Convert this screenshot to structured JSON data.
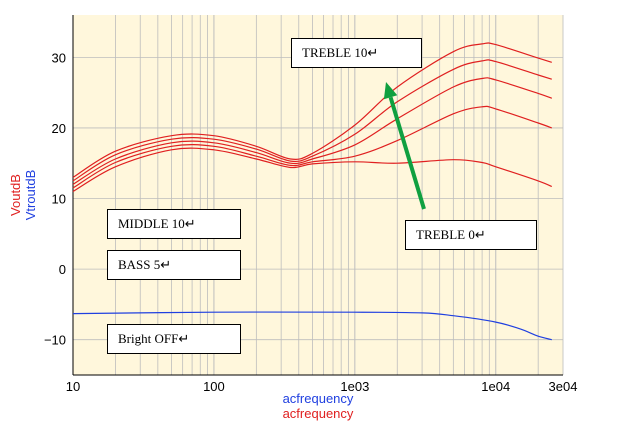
{
  "chart_data": {
    "type": "line",
    "title": "",
    "xlabel": [
      "acfrequency",
      "acfrequency"
    ],
    "ylabel": [
      "VoutdB",
      "VtroutdB"
    ],
    "xscale": "log",
    "xlim": [
      10,
      30000
    ],
    "ylim": [
      -15,
      36
    ],
    "x_ticks": [
      {
        "value": 10,
        "label": "10"
      },
      {
        "value": 100,
        "label": "100"
      },
      {
        "value": 1000,
        "label": "1e03"
      },
      {
        "value": 10000,
        "label": "1e04"
      },
      {
        "value": 30000,
        "label": "3e04"
      }
    ],
    "y_ticks": [
      {
        "value": 30,
        "label": "30"
      },
      {
        "value": 20,
        "label": "20"
      },
      {
        "value": 10,
        "label": "10"
      },
      {
        "value": 0,
        "label": "0"
      },
      {
        "value": -10,
        "label": "−10"
      }
    ],
    "grid": true,
    "colors": {
      "background": "#fff7dc",
      "grid": "#bdbdbd",
      "red": "#e02020",
      "blue": "#2040e0",
      "arrow": "#10a040"
    },
    "series": [
      {
        "name": "",
        "color": "#e02020",
        "x": [
          10,
          20,
          50,
          100,
          200,
          350,
          500,
          1000,
          2000,
          5000,
          8000,
          10000,
          20000,
          25000
        ],
        "y": [
          11.0,
          14.5,
          16.9,
          16.9,
          15.6,
          14.4,
          14.9,
          15.2,
          15.0,
          15.5,
          15.1,
          14.5,
          12.5,
          11.7
        ]
      },
      {
        "name": "",
        "color": "#e02020",
        "x": [
          10,
          20,
          50,
          100,
          200,
          350,
          500,
          1000,
          2000,
          5000,
          8000,
          10000,
          20000,
          25000
        ],
        "y": [
          11.5,
          15.1,
          17.4,
          17.4,
          16.0,
          14.7,
          15.2,
          16.0,
          18.2,
          22.0,
          23.0,
          22.7,
          20.7,
          20.0
        ]
      },
      {
        "name": "",
        "color": "#e02020",
        "x": [
          10,
          20,
          50,
          100,
          200,
          350,
          500,
          1000,
          2000,
          5000,
          8000,
          10000,
          20000,
          25000
        ],
        "y": [
          12.0,
          15.6,
          17.9,
          17.9,
          16.5,
          15.0,
          15.6,
          17.6,
          21.3,
          25.8,
          27.0,
          26.8,
          24.9,
          24.2
        ]
      },
      {
        "name": "",
        "color": "#e02020",
        "x": [
          10,
          20,
          50,
          100,
          200,
          350,
          500,
          1000,
          2000,
          5000,
          8000,
          10000,
          20000,
          25000
        ],
        "y": [
          12.5,
          16.2,
          18.4,
          18.4,
          17.0,
          15.3,
          16.0,
          19.1,
          23.7,
          28.3,
          29.5,
          29.4,
          27.5,
          26.9
        ]
      },
      {
        "name": "",
        "color": "#e02020",
        "x": [
          10,
          20,
          50,
          100,
          200,
          350,
          500,
          1000,
          2000,
          5000,
          8000,
          10000,
          20000,
          25000
        ],
        "y": [
          13.0,
          16.7,
          18.9,
          18.9,
          17.4,
          15.6,
          16.4,
          20.4,
          25.8,
          30.8,
          31.9,
          31.8,
          29.9,
          29.3
        ]
      },
      {
        "name": "",
        "color": "#2040e0",
        "x": [
          10,
          100,
          1000,
          3000,
          5000,
          10000,
          15000,
          20000,
          25000
        ],
        "y": [
          -6.3,
          -6.1,
          -6.1,
          -6.2,
          -6.6,
          -7.5,
          -8.5,
          -9.5,
          -10.0
        ]
      }
    ],
    "annotations": [
      {
        "id": "treble10",
        "text": "TREBLE 10↵"
      },
      {
        "id": "middle10",
        "text": "MIDDLE 10↵"
      },
      {
        "id": "treble0",
        "text": "TREBLE 0↵"
      },
      {
        "id": "bass5",
        "text": "BASS 5↵"
      },
      {
        "id": "bright",
        "text": "Bright OFF↵"
      }
    ]
  }
}
